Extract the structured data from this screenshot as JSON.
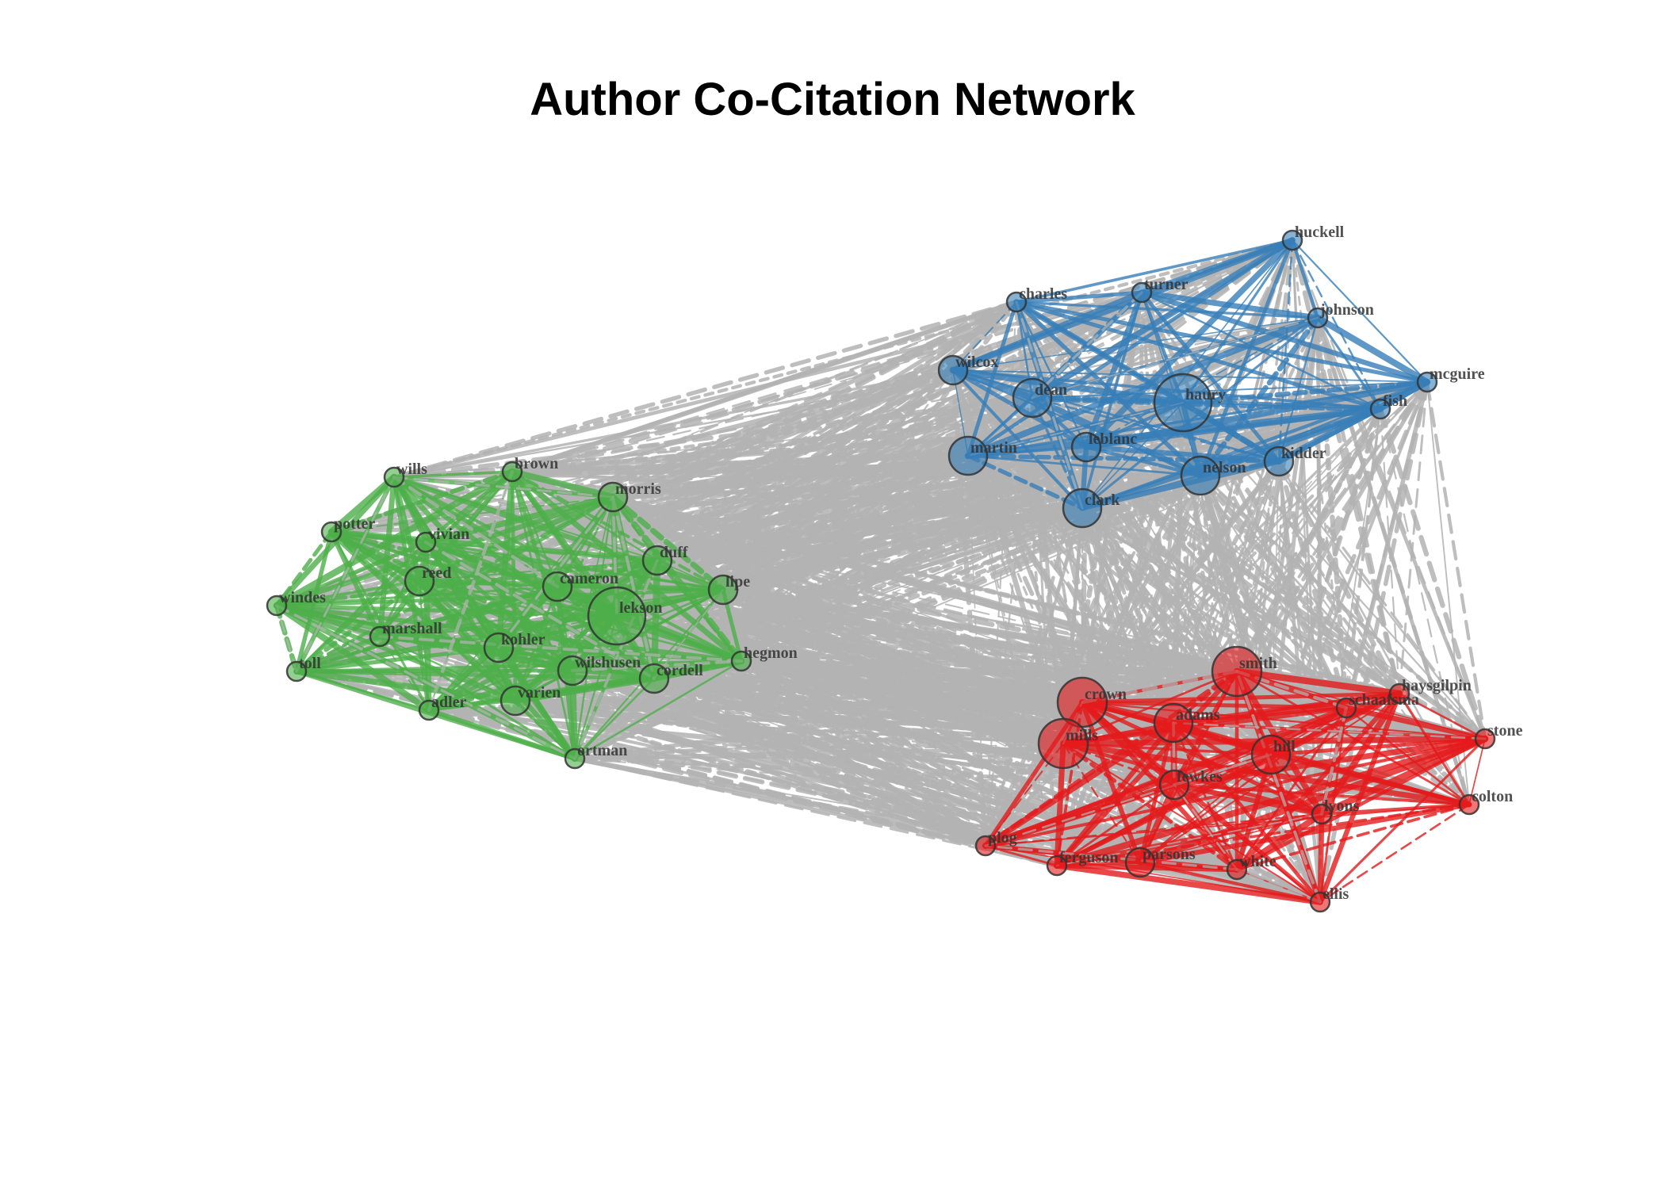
{
  "title": "Author Co-Citation Network",
  "colors": {
    "background": "#ffffff",
    "inter_cluster_edge": "#b3b3b3",
    "node_stroke": "#333333",
    "label": "#333333"
  },
  "clusters": [
    {
      "id": "blue",
      "color": "#377eb8"
    },
    {
      "id": "green",
      "color": "#4daf4a"
    },
    {
      "id": "red",
      "color": "#e41a1c"
    }
  ],
  "nodes": [
    {
      "label": "huckell",
      "cluster": "blue",
      "size": 1
    },
    {
      "label": "charles",
      "cluster": "blue",
      "size": 1
    },
    {
      "label": "turner",
      "cluster": "blue",
      "size": 1
    },
    {
      "label": "johnson",
      "cluster": "blue",
      "size": 1
    },
    {
      "label": "wilcox",
      "cluster": "blue",
      "size": 2
    },
    {
      "label": "mcguire",
      "cluster": "blue",
      "size": 1
    },
    {
      "label": "dean",
      "cluster": "blue",
      "size": 3
    },
    {
      "label": "haury",
      "cluster": "blue",
      "size": 5
    },
    {
      "label": "fish",
      "cluster": "blue",
      "size": 1
    },
    {
      "label": "martin",
      "cluster": "blue",
      "size": 3
    },
    {
      "label": "leblanc",
      "cluster": "blue",
      "size": 2
    },
    {
      "label": "kidder",
      "cluster": "blue",
      "size": 2
    },
    {
      "label": "nelson",
      "cluster": "blue",
      "size": 3
    },
    {
      "label": "clark",
      "cluster": "blue",
      "size": 3
    },
    {
      "label": "wills",
      "cluster": "green",
      "size": 1
    },
    {
      "label": "brown",
      "cluster": "green",
      "size": 1
    },
    {
      "label": "morris",
      "cluster": "green",
      "size": 2
    },
    {
      "label": "potter",
      "cluster": "green",
      "size": 1
    },
    {
      "label": "vivian",
      "cluster": "green",
      "size": 1
    },
    {
      "label": "duff",
      "cluster": "green",
      "size": 2
    },
    {
      "label": "reed",
      "cluster": "green",
      "size": 2
    },
    {
      "label": "cameron",
      "cluster": "green",
      "size": 2
    },
    {
      "label": "lipe",
      "cluster": "green",
      "size": 2
    },
    {
      "label": "windes",
      "cluster": "green",
      "size": 1
    },
    {
      "label": "lekson",
      "cluster": "green",
      "size": 5
    },
    {
      "label": "marshall",
      "cluster": "green",
      "size": 1
    },
    {
      "label": "hegmon",
      "cluster": "green",
      "size": 1
    },
    {
      "label": "kohler",
      "cluster": "green",
      "size": 2
    },
    {
      "label": "toll",
      "cluster": "green",
      "size": 1
    },
    {
      "label": "wilshusen",
      "cluster": "green",
      "size": 2
    },
    {
      "label": "cordell",
      "cluster": "green",
      "size": 2
    },
    {
      "label": "adler",
      "cluster": "green",
      "size": 1
    },
    {
      "label": "varien",
      "cluster": "green",
      "size": 2
    },
    {
      "label": "ortman",
      "cluster": "green",
      "size": 1
    },
    {
      "label": "smith",
      "cluster": "red",
      "size": 4
    },
    {
      "label": "crown",
      "cluster": "red",
      "size": 4
    },
    {
      "label": "haysgilpin",
      "cluster": "red",
      "size": 1
    },
    {
      "label": "schaafsma",
      "cluster": "red",
      "size": 1
    },
    {
      "label": "adams",
      "cluster": "red",
      "size": 3
    },
    {
      "label": "mills",
      "cluster": "red",
      "size": 4
    },
    {
      "label": "stone",
      "cluster": "red",
      "size": 1
    },
    {
      "label": "hill",
      "cluster": "red",
      "size": 3
    },
    {
      "label": "fewkes",
      "cluster": "red",
      "size": 2
    },
    {
      "label": "colton",
      "cluster": "red",
      "size": 1
    },
    {
      "label": "lyons",
      "cluster": "red",
      "size": 1
    },
    {
      "label": "plog",
      "cluster": "red",
      "size": 1
    },
    {
      "label": "ferguson",
      "cluster": "red",
      "size": 1
    },
    {
      "label": "parsons",
      "cluster": "red",
      "size": 2
    },
    {
      "label": "white",
      "cluster": "red",
      "size": 1
    },
    {
      "label": "ellis",
      "cluster": "red",
      "size": 1
    }
  ]
}
